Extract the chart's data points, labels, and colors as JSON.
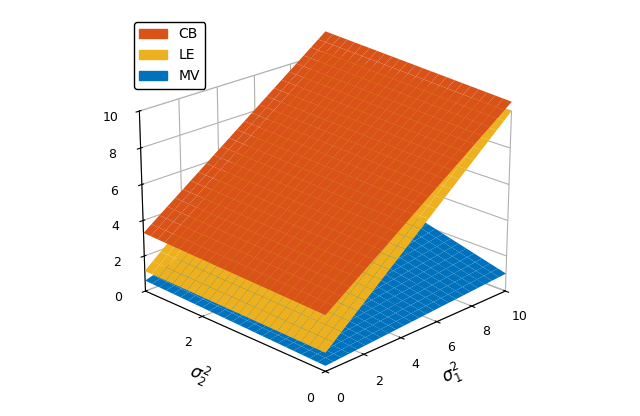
{
  "sigma1_range": [
    0,
    10
  ],
  "sigma2_range": [
    0,
    3
  ],
  "n_points": 25,
  "zlim": [
    0,
    10
  ],
  "xlabel": "$\\sigma_1^2$",
  "ylabel": "$\\sigma_2^2$",
  "colors": {
    "CB": "#D95319",
    "LE": "#EDB120",
    "MV": "#0072BD"
  },
  "alpha": 1.0,
  "view_elev": 22,
  "view_azim": -135,
  "xticks": [
    0,
    2,
    4,
    6,
    8,
    10
  ],
  "yticks": [
    0,
    2
  ],
  "zticks": [
    0,
    2,
    4,
    6,
    8,
    10
  ]
}
